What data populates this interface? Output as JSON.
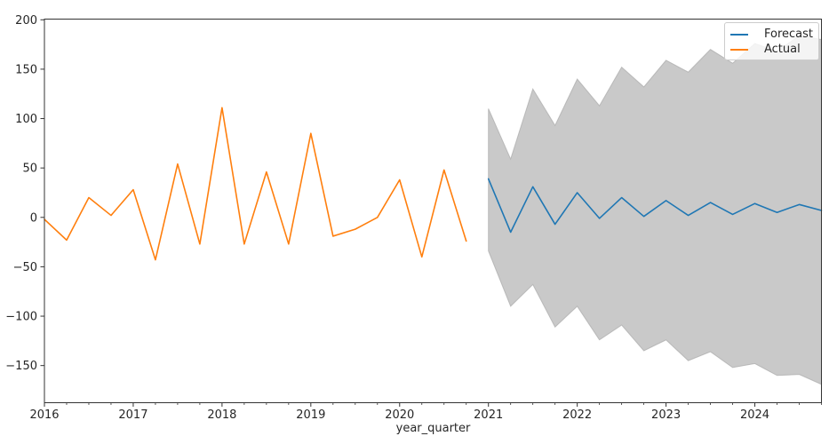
{
  "chart_data": {
    "type": "line",
    "title": "",
    "xlabel": "year_quarter",
    "ylabel": "",
    "grid": false,
    "legend_position": "upper right",
    "xlim": [
      2016.0,
      2024.75
    ],
    "ylim": [
      -187.6,
      200.7
    ],
    "x_major_ticks": [
      2016,
      2017,
      2018,
      2019,
      2020,
      2021,
      2022,
      2023,
      2024
    ],
    "x_minor_tick_step": 0.25,
    "y_ticks": [
      -150,
      -100,
      -50,
      0,
      50,
      100,
      150,
      200
    ],
    "series": [
      {
        "name": "Forecast",
        "color": "#1f77b4",
        "x": [
          2021.0,
          2021.25,
          2021.5,
          2021.75,
          2022.0,
          2022.25,
          2022.5,
          2022.75,
          2023.0,
          2023.25,
          2023.5,
          2023.75,
          2024.0,
          2024.25,
          2024.5,
          2024.75
        ],
        "values": [
          39,
          -15,
          31,
          -7,
          25,
          -1,
          20,
          1,
          17,
          2,
          15,
          3,
          14,
          5,
          13,
          7
        ]
      },
      {
        "name": "Actual",
        "color": "#ff7f0e",
        "x": [
          2016.0,
          2016.25,
          2016.5,
          2016.75,
          2017.0,
          2017.25,
          2017.5,
          2017.75,
          2018.0,
          2018.25,
          2018.5,
          2018.75,
          2019.0,
          2019.25,
          2019.5,
          2019.75,
          2020.0,
          2020.25,
          2020.5,
          2020.75
        ],
        "values": [
          -2,
          -23,
          20,
          2,
          28,
          -43,
          54,
          -27,
          111,
          -27,
          46,
          -27,
          85,
          -19,
          -12,
          0,
          38,
          -40,
          48,
          -24
        ]
      }
    ],
    "confidence_band": {
      "series": "Forecast",
      "fill_color": "#c9c9c9",
      "edge_color": "#a9a9a9",
      "x": [
        2021.0,
        2021.25,
        2021.5,
        2021.75,
        2022.0,
        2022.25,
        2022.5,
        2022.75,
        2023.0,
        2023.25,
        2023.5,
        2023.75,
        2024.0,
        2024.25,
        2024.5,
        2024.75
      ],
      "upper": [
        110,
        59,
        130,
        93,
        140,
        113,
        152,
        132,
        159,
        147,
        170,
        156,
        176,
        168,
        184,
        180
      ],
      "lower": [
        -34,
        -90,
        -68,
        -111,
        -90,
        -124,
        -109,
        -135,
        -124,
        -145,
        -136,
        -152,
        -148,
        -160,
        -159,
        -169
      ]
    },
    "legend": {
      "entries": [
        {
          "label": "Forecast",
          "color": "#1f77b4"
        },
        {
          "label": "Actual",
          "color": "#ff7f0e"
        }
      ]
    }
  }
}
